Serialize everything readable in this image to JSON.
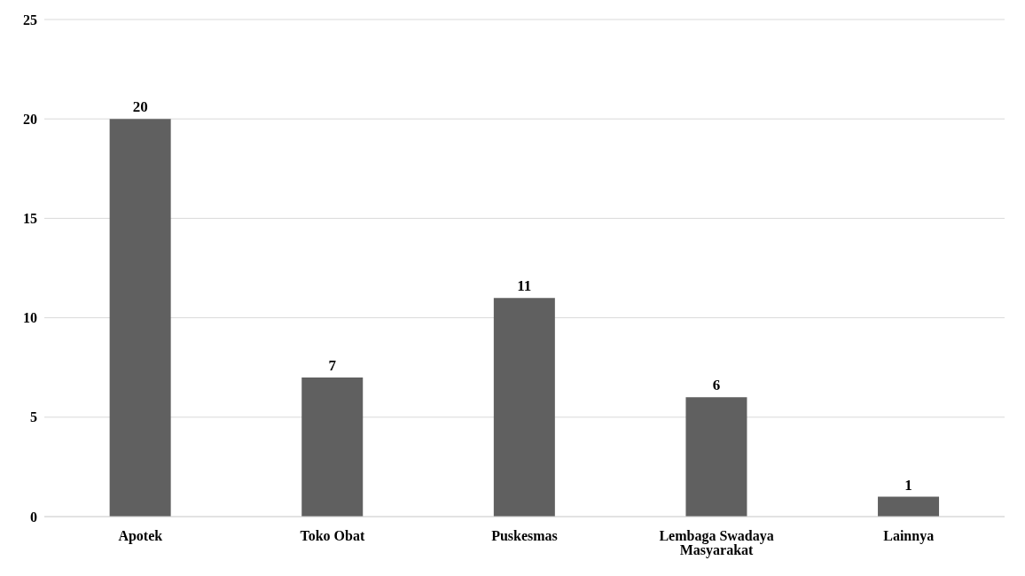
{
  "chart_data": {
    "type": "bar",
    "categories": [
      "Apotek",
      "Toko Obat",
      "Puskesmas",
      "Lembaga Swadaya Masyarakat",
      "Lainnya"
    ],
    "values": [
      20,
      7,
      11,
      6,
      1
    ],
    "color": "#606060",
    "ylim": [
      0,
      25
    ],
    "yticks": [
      0,
      5,
      10,
      15,
      20,
      25
    ],
    "grid": "y",
    "data_labels": true,
    "legend": false
  }
}
